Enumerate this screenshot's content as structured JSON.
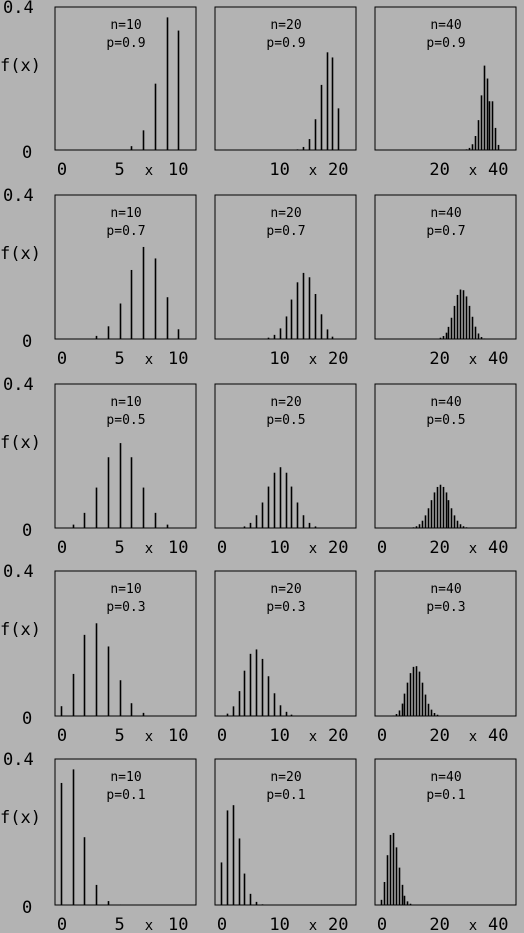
{
  "chart_data": {
    "type": "bar",
    "grid": false,
    "ylim": [
      0,
      0.4
    ],
    "y_ticks": [
      "0",
      "0.4"
    ],
    "ylabel": "f(x)",
    "xlabel": "x",
    "rows": [
      {
        "p_label": "p=0.9",
        "panels": [
          {
            "n_label": "n=10",
            "xlim": [
              0,
              11
            ],
            "x_ticks": [
              "0",
              "5",
              "10"
            ],
            "x": [
              0,
              1,
              2,
              3,
              4,
              5,
              6,
              7,
              8,
              9,
              10
            ],
            "values": [
              0,
              0,
              0,
              0,
              0.0001,
              0.0015,
              0.0112,
              0.0574,
              0.1937,
              0.3874,
              0.3487
            ]
          },
          {
            "n_label": "n=20",
            "xlim": [
              0,
              22
            ],
            "x_ticks": [
              "10",
              "20"
            ],
            "x": [
              10,
              11,
              12,
              13,
              14,
              15,
              16,
              17,
              18,
              19,
              20
            ],
            "values": [
              0,
              0,
              0.0004,
              0.002,
              0.0089,
              0.0319,
              0.0898,
              0.1901,
              0.2852,
              0.2702,
              0.1216
            ]
          },
          {
            "n_label": "n=40",
            "xlim": [
              0,
              44
            ],
            "x_ticks": [
              "20",
              "40"
            ],
            "x": [
              27,
              28,
              29,
              30,
              31,
              32,
              33,
              34,
              35,
              36,
              37,
              38,
              39,
              40
            ],
            "values": [
              0.0002,
              0.0006,
              0.002,
              0.0061,
              0.0168,
              0.0409,
              0.0872,
              0.1595,
              0.2464,
              0.2087,
              0.1424,
              0.1422,
              0.0645,
              0.0148
            ]
          }
        ]
      },
      {
        "p_label": "p=0.7",
        "panels": [
          {
            "n_label": "n=10",
            "xlim": [
              0,
              11
            ],
            "x_ticks": [
              "0",
              "5",
              "10"
            ],
            "x": [
              0,
              1,
              2,
              3,
              4,
              5,
              6,
              7,
              8,
              9,
              10
            ],
            "values": [
              0,
              0.0001,
              0.0014,
              0.009,
              0.0368,
              0.1029,
              0.2001,
              0.2668,
              0.2335,
              0.1211,
              0.0282
            ]
          },
          {
            "n_label": "n=20",
            "xlim": [
              0,
              22
            ],
            "x_ticks": [
              "10",
              "20"
            ],
            "x": [
              8,
              9,
              10,
              11,
              12,
              13,
              14,
              15,
              16,
              17,
              18,
              19,
              20
            ],
            "values": [
              0.0039,
              0.012,
              0.0308,
              0.0654,
              0.1144,
              0.1643,
              0.1916,
              0.1789,
              0.1304,
              0.0716,
              0.0278,
              0.0068,
              0.0008
            ]
          },
          {
            "n_label": "n=40",
            "xlim": [
              0,
              44
            ],
            "x_ticks": [
              "20",
              "40"
            ],
            "x": [
              18,
              19,
              20,
              21,
              22,
              23,
              24,
              25,
              26,
              27,
              28,
              29,
              30,
              31,
              32,
              33,
              34,
              35,
              36,
              37
            ],
            "values": [
              0.0004,
              0.0013,
              0.0037,
              0.0086,
              0.0183,
              0.0352,
              0.0616,
              0.0959,
              0.1277,
              0.1434,
              0.1414,
              0.1234,
              0.096,
              0.0644,
              0.0357,
              0.016,
              0.0057,
              0.0016,
              0.0003,
              0.0001
            ]
          }
        ]
      },
      {
        "p_label": "p=0.5",
        "panels": [
          {
            "n_label": "n=10",
            "xlim": [
              0,
              11
            ],
            "x_ticks": [
              "0",
              "5",
              "10"
            ],
            "x": [
              0,
              1,
              2,
              3,
              4,
              5,
              6,
              7,
              8,
              9,
              10
            ],
            "values": [
              0.001,
              0.0098,
              0.0439,
              0.1172,
              0.2051,
              0.2461,
              0.2051,
              0.1172,
              0.0439,
              0.0098,
              0.001
            ]
          },
          {
            "n_label": "n=20",
            "xlim": [
              0,
              22
            ],
            "x_ticks": [
              "0",
              "10",
              "20"
            ],
            "x": [
              3,
              4,
              5,
              6,
              7,
              8,
              9,
              10,
              11,
              12,
              13,
              14,
              15,
              16,
              17
            ],
            "values": [
              0.0011,
              0.0046,
              0.0148,
              0.037,
              0.0739,
              0.1201,
              0.1602,
              0.1762,
              0.1602,
              0.1201,
              0.0739,
              0.037,
              0.0148,
              0.0046,
              0.0011
            ]
          },
          {
            "n_label": "n=40",
            "xlim": [
              0,
              44
            ],
            "x_ticks": [
              "0",
              "20",
              "40"
            ],
            "x": [
              10,
              11,
              12,
              13,
              14,
              15,
              16,
              17,
              18,
              19,
              20,
              21,
              22,
              23,
              24,
              25,
              26,
              27,
              28,
              29,
              30
            ],
            "values": [
              0.0008,
              0.0021,
              0.0051,
              0.0109,
              0.0211,
              0.0366,
              0.0572,
              0.0807,
              0.1031,
              0.119,
              0.1254,
              0.119,
              0.1031,
              0.0807,
              0.0572,
              0.0366,
              0.0211,
              0.0109,
              0.0051,
              0.0021,
              0.0008
            ]
          }
        ]
      },
      {
        "p_label": "p=0.3",
        "panels": [
          {
            "n_label": "n=10",
            "xlim": [
              0,
              11
            ],
            "x_ticks": [
              "0",
              "5",
              "10"
            ],
            "x": [
              0,
              1,
              2,
              3,
              4,
              5,
              6,
              7,
              8,
              9,
              10
            ],
            "values": [
              0.0282,
              0.1211,
              0.2335,
              0.2668,
              0.2001,
              0.1029,
              0.0368,
              0.009,
              0.0014,
              0.0001,
              0
            ]
          },
          {
            "n_label": "n=20",
            "xlim": [
              0,
              22
            ],
            "x_ticks": [
              "0",
              "10",
              "20"
            ],
            "x": [
              0,
              1,
              2,
              3,
              4,
              5,
              6,
              7,
              8,
              9,
              10,
              11,
              12
            ],
            "values": [
              0.0008,
              0.0068,
              0.0278,
              0.0716,
              0.1304,
              0.1789,
              0.1916,
              0.1643,
              0.1144,
              0.0654,
              0.0308,
              0.012,
              0.0039
            ]
          },
          {
            "n_label": "n=40",
            "xlim": [
              0,
              44
            ],
            "x_ticks": [
              "0",
              "20",
              "40"
            ],
            "x": [
              2,
              3,
              4,
              5,
              6,
              7,
              8,
              9,
              10,
              11,
              12,
              13,
              14,
              15,
              16,
              17,
              18,
              19,
              20,
              21,
              22
            ],
            "values": [
              0.0001,
              0.0003,
              0.0016,
              0.0057,
              0.016,
              0.0357,
              0.0644,
              0.096,
              0.1234,
              0.1414,
              0.1434,
              0.1277,
              0.0959,
              0.0616,
              0.0352,
              0.0183,
              0.0086,
              0.0037,
              0.0013,
              0.0004,
              0.0001
            ]
          }
        ]
      },
      {
        "p_label": "p=0.1",
        "panels": [
          {
            "n_label": "n=10",
            "xlim": [
              0,
              11
            ],
            "x_ticks": [
              "0",
              "5",
              "10"
            ],
            "x": [
              0,
              1,
              2,
              3,
              4,
              5,
              6,
              7,
              8,
              9,
              10
            ],
            "values": [
              0.3487,
              0.3874,
              0.1937,
              0.0574,
              0.0112,
              0.0015,
              0.0001,
              0,
              0,
              0,
              0
            ]
          },
          {
            "n_label": "n=20",
            "xlim": [
              0,
              22
            ],
            "x_ticks": [
              "0",
              "10",
              "20"
            ],
            "x": [
              0,
              1,
              2,
              3,
              4,
              5,
              6,
              7,
              8
            ],
            "values": [
              0.1216,
              0.2702,
              0.2852,
              0.1901,
              0.0898,
              0.0319,
              0.0089,
              0.002,
              0.0004
            ]
          },
          {
            "n_label": "n=40",
            "xlim": [
              0,
              44
            ],
            "x_ticks": [
              "0",
              "20",
              "40"
            ],
            "x": [
              0,
              1,
              2,
              3,
              4,
              5,
              6,
              7,
              8,
              9,
              10,
              11,
              12,
              13
            ],
            "values": [
              0.0148,
              0.0657,
              0.1423,
              0.2003,
              0.2059,
              0.1647,
              0.1068,
              0.0576,
              0.0264,
              0.0104,
              0.0036,
              0.0011,
              0.0003,
              0.0001
            ]
          }
        ]
      }
    ]
  }
}
